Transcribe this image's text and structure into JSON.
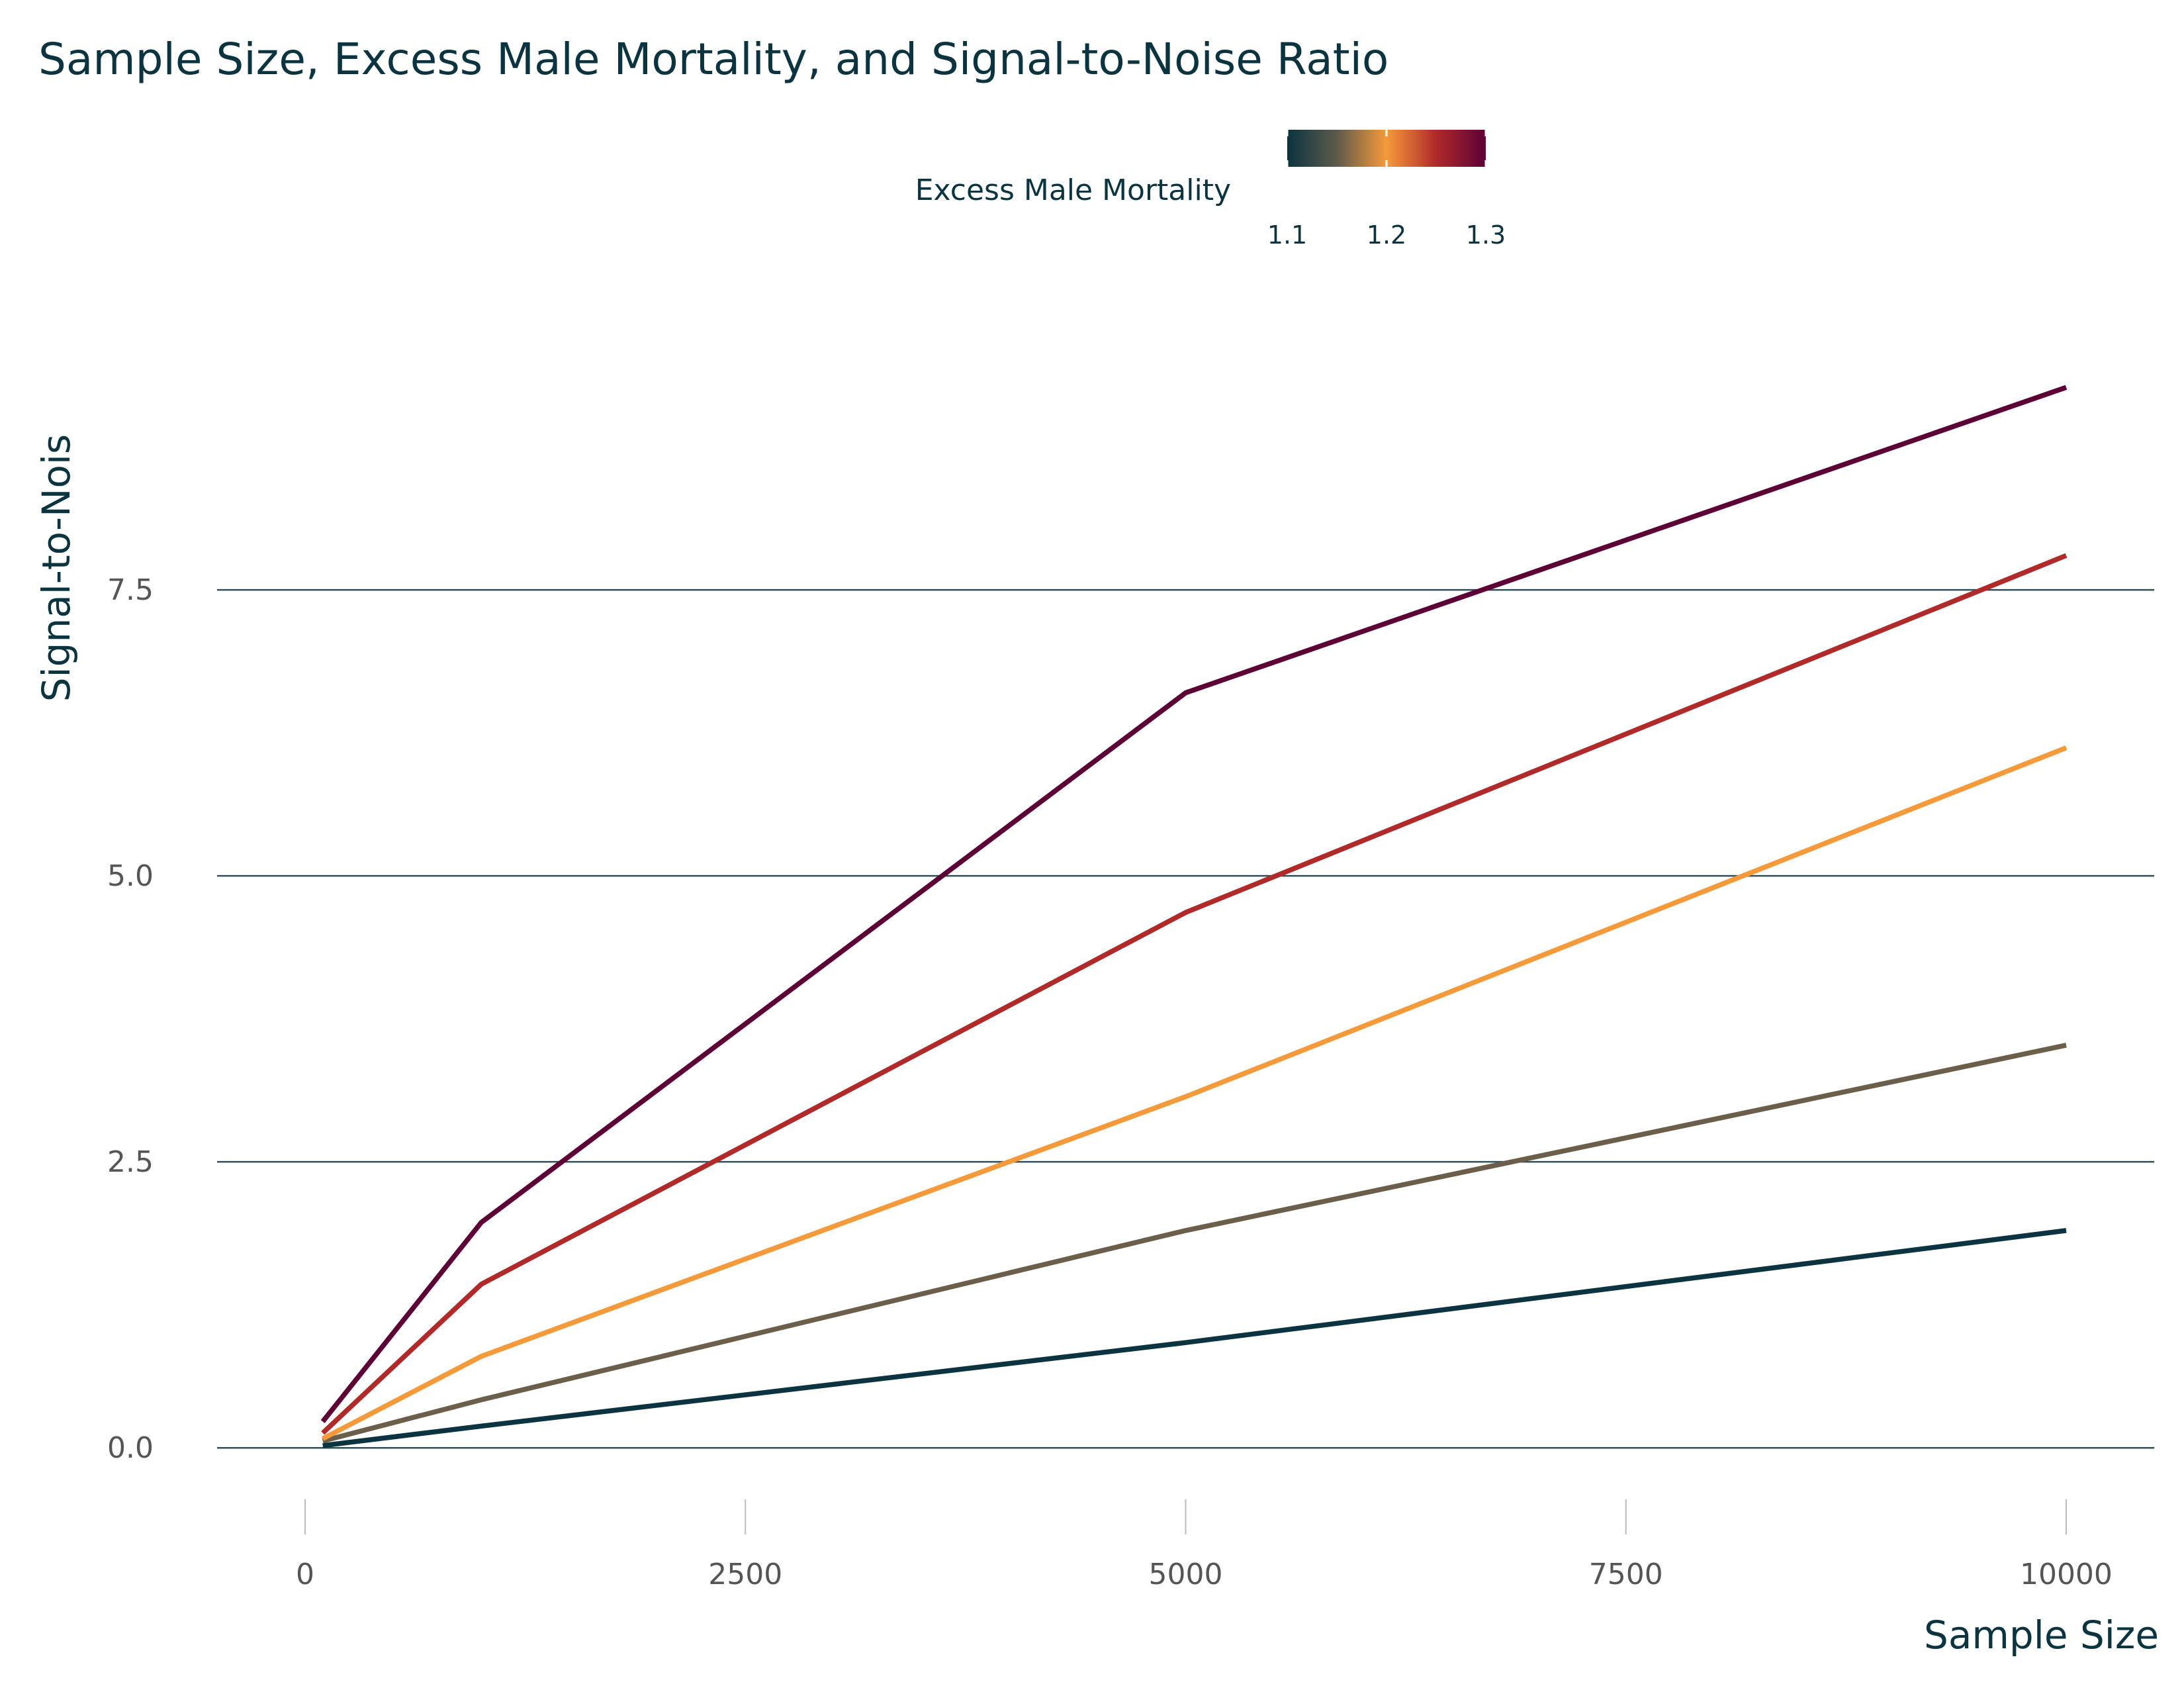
{
  "chart_data": {
    "type": "line",
    "title": "Sample Size, Excess Male Mortality, and Signal-to-Noise Ratio",
    "xlabel": "Sample Size",
    "ylabel": "Signal-to-Nois",
    "xlim": [
      -500,
      10500
    ],
    "ylim": [
      -0.45,
      9.3
    ],
    "x_ticks": [
      0,
      2500,
      5000,
      7500,
      10000
    ],
    "x_tick_labels": [
      "0",
      "2500",
      "5000",
      "7500",
      "10000"
    ],
    "y_ticks": [
      0,
      2.5,
      5,
      7.5
    ],
    "y_tick_labels": [
      "0.0",
      "2.5",
      "5.0",
      "7.5"
    ],
    "grid": "horizontal",
    "legend": {
      "title": "Excess Male Mortality",
      "type": "colorbar",
      "placement": "top",
      "range": [
        1.1,
        1.3
      ],
      "ticks": [
        1.1,
        1.2,
        1.3
      ],
      "tick_labels": [
        "1.1",
        "1.2",
        "1.3"
      ],
      "gradient": [
        "#0b3440",
        "#5e5a4b",
        "#f59a3b",
        "#b02a2a",
        "#5c0035"
      ]
    },
    "x": [
      100,
      1000,
      5000,
      10000
    ],
    "series": [
      {
        "level": 1.1,
        "color": "#0b3440",
        "values": [
          0.02,
          0.19,
          0.92,
          1.9
        ]
      },
      {
        "level": 1.15,
        "color": "#6b5e4b",
        "values": [
          0.06,
          0.42,
          1.9,
          3.52
        ]
      },
      {
        "level": 1.2,
        "color": "#f59a3b",
        "values": [
          0.08,
          0.8,
          3.07,
          6.12
        ]
      },
      {
        "level": 1.25,
        "color": "#b02a2a",
        "values": [
          0.13,
          1.43,
          4.68,
          7.8
        ]
      },
      {
        "level": 1.3,
        "color": "#5c0035",
        "values": [
          0.23,
          1.97,
          6.6,
          9.27
        ]
      }
    ]
  }
}
